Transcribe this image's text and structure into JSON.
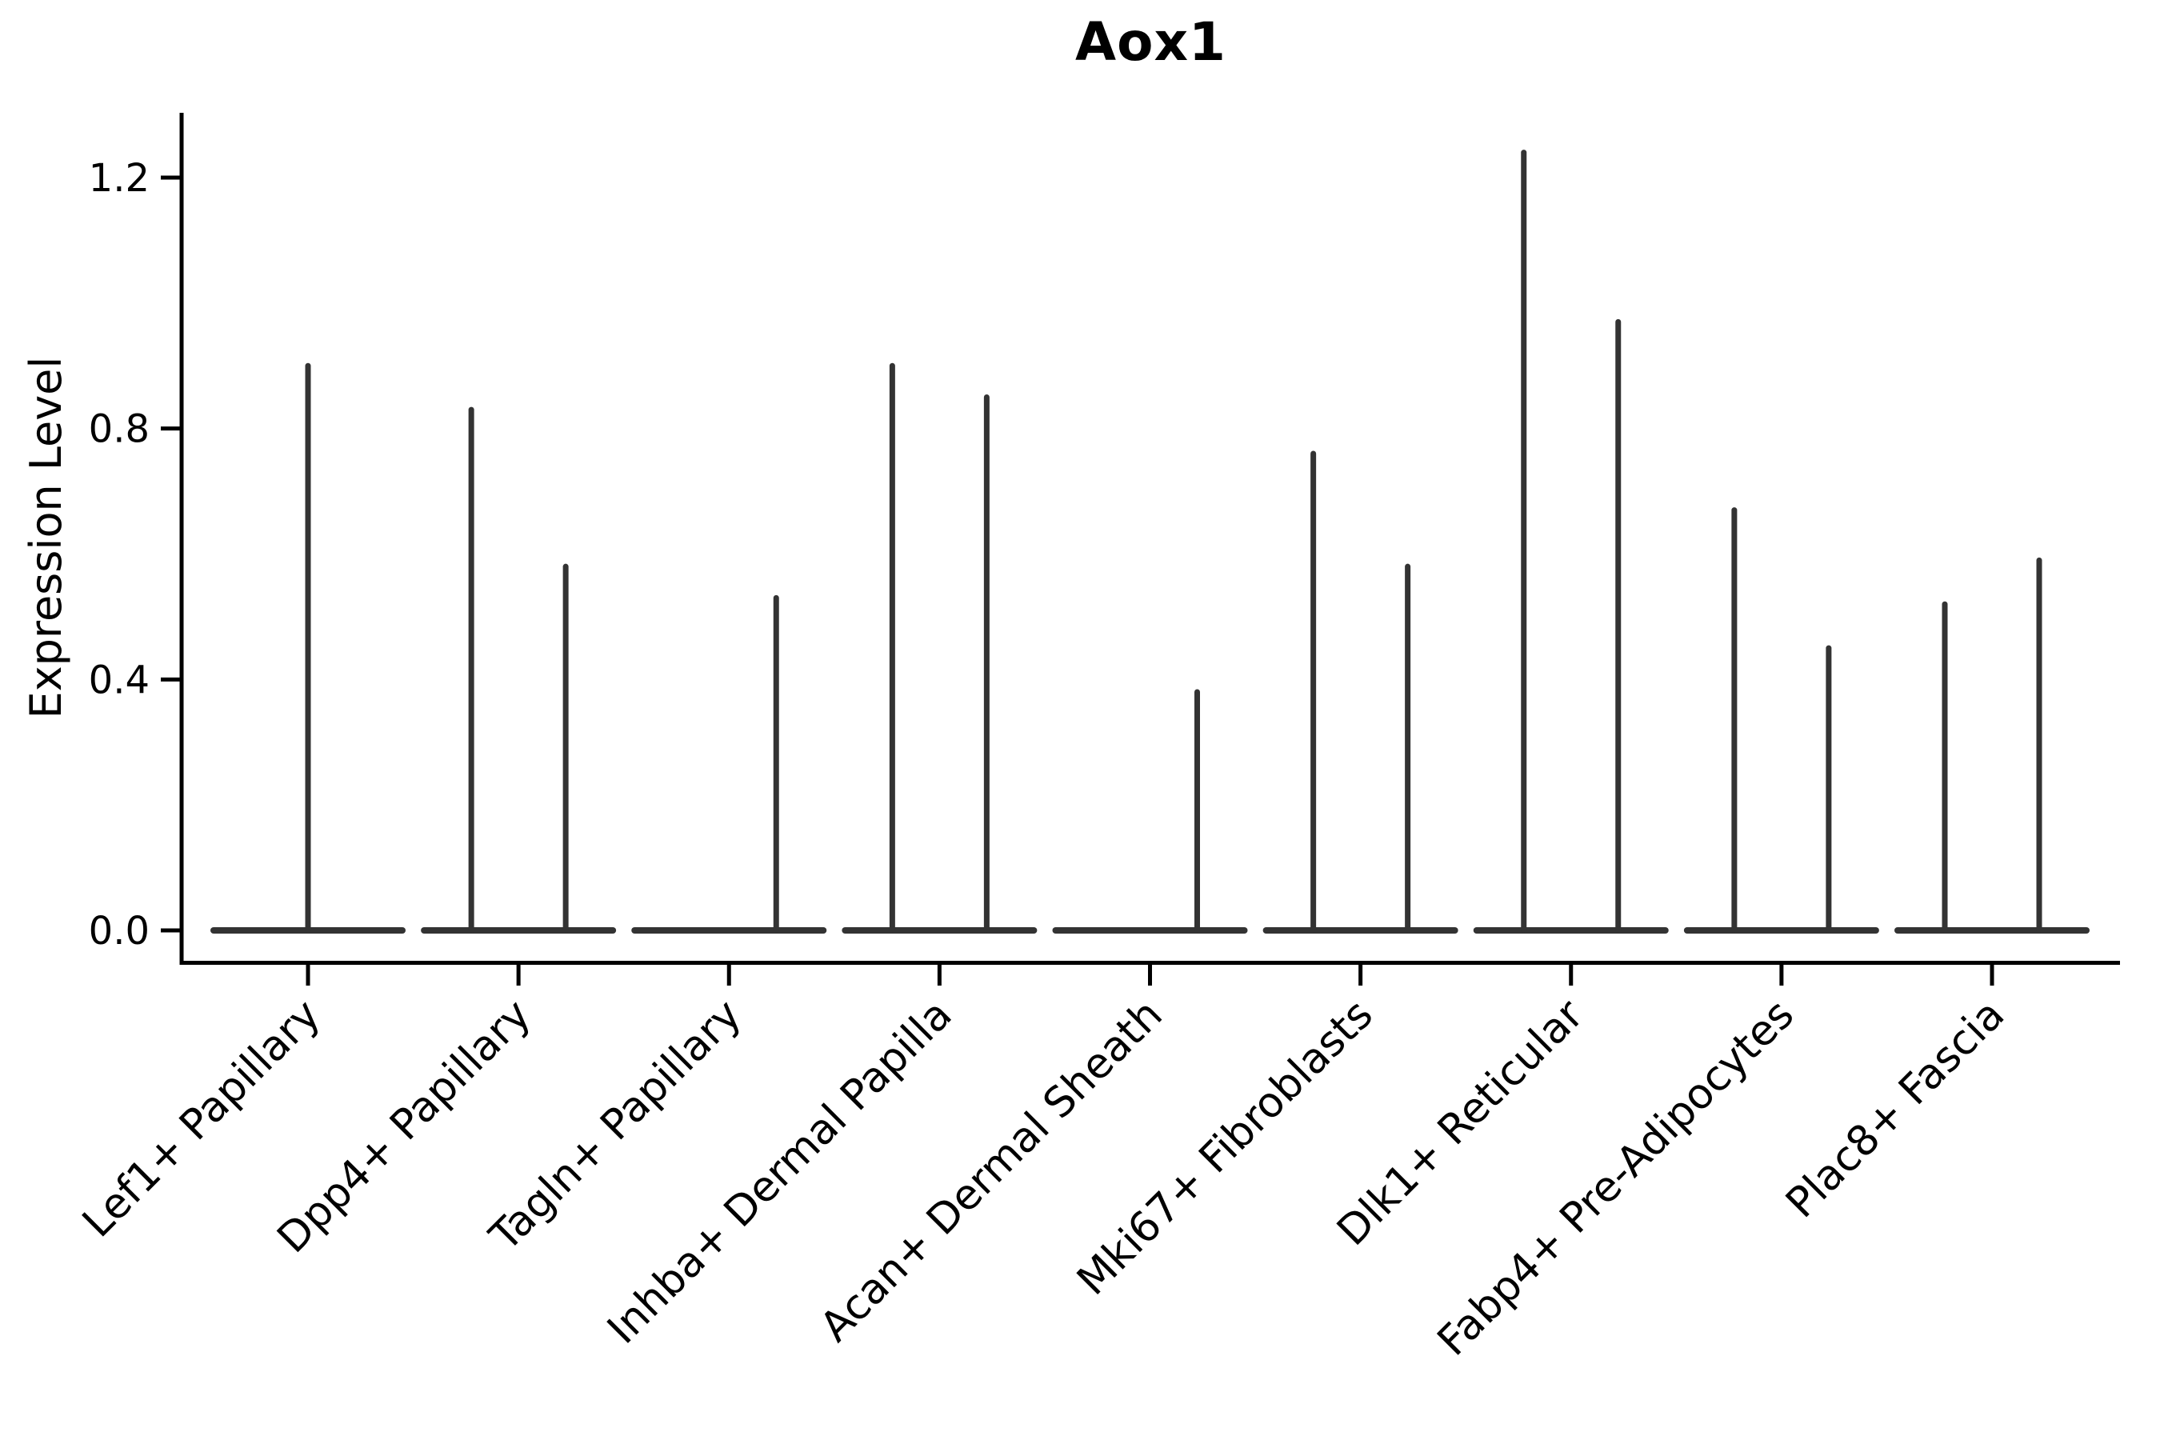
{
  "chart_data": {
    "type": "violin",
    "title": "Aox1",
    "ylabel": "Expression Level",
    "xlabel": "",
    "ylim": [
      -0.05,
      1.3
    ],
    "grid": false,
    "legend_position": "none",
    "axis_color": "#000000",
    "violin_color": "#333333",
    "baseline_value": 0.0,
    "yticks": [
      {
        "label": "0.0",
        "value": 0.0
      },
      {
        "label": "0.4",
        "value": 0.4
      },
      {
        "label": "0.8",
        "value": 0.8
      },
      {
        "label": "1.2",
        "value": 1.2
      }
    ],
    "categories": [
      {
        "label": "Lef1+ Papillary",
        "spikes": [
          {
            "x_frac": 0.5,
            "max_expression": 0.9
          }
        ]
      },
      {
        "label": "Dpp4+ Papillary",
        "spikes": [
          {
            "x_frac": 0.25,
            "max_expression": 0.83
          },
          {
            "x_frac": 0.75,
            "max_expression": 0.58
          }
        ]
      },
      {
        "label": "Tagln+ Papillary",
        "spikes": [
          {
            "x_frac": 0.75,
            "max_expression": 0.53
          }
        ]
      },
      {
        "label": "Inhba+ Dermal Papilla",
        "spikes": [
          {
            "x_frac": 0.25,
            "max_expression": 0.9
          },
          {
            "x_frac": 0.75,
            "max_expression": 0.85
          }
        ]
      },
      {
        "label": "Acan+ Dermal Sheath",
        "spikes": [
          {
            "x_frac": 0.75,
            "max_expression": 0.38
          }
        ]
      },
      {
        "label": "Mki67+ Fibroblasts",
        "spikes": [
          {
            "x_frac": 0.25,
            "max_expression": 0.76
          },
          {
            "x_frac": 0.75,
            "max_expression": 0.58
          }
        ]
      },
      {
        "label": "Dlk1+ Reticular",
        "spikes": [
          {
            "x_frac": 0.25,
            "max_expression": 1.24
          },
          {
            "x_frac": 0.75,
            "max_expression": 0.97
          }
        ]
      },
      {
        "label": "Fabp4+ Pre-Adipocytes",
        "spikes": [
          {
            "x_frac": 0.25,
            "max_expression": 0.67
          },
          {
            "x_frac": 0.75,
            "max_expression": 0.45
          }
        ]
      },
      {
        "label": "Plac8+ Fascia",
        "spikes": [
          {
            "x_frac": 0.25,
            "max_expression": 0.52
          },
          {
            "x_frac": 0.75,
            "max_expression": 0.59
          }
        ]
      }
    ]
  }
}
